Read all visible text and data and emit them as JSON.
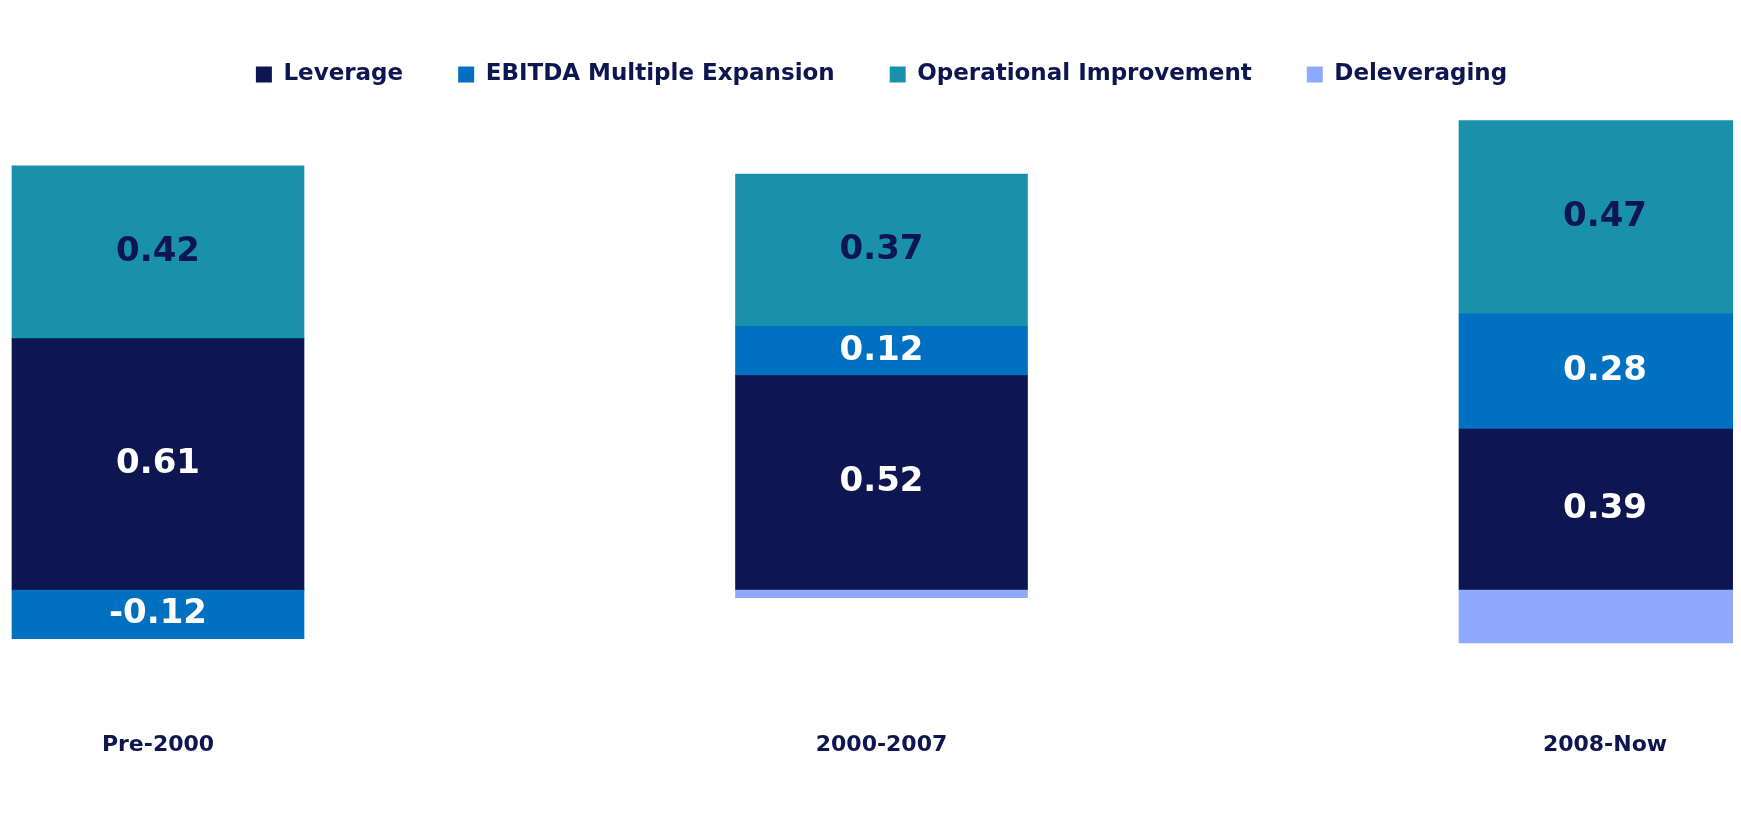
{
  "chart_data": {
    "type": "bar",
    "stacked": true,
    "categories": [
      "Pre-2000",
      "2000-2007",
      "2008-Now"
    ],
    "series": [
      {
        "name": "Leverage",
        "color": "#0d1650",
        "values": [
          0.61,
          0.52,
          0.39
        ],
        "value_labels": [
          "0.61",
          "0.52",
          "0.39"
        ]
      },
      {
        "name": "EBITDA Multiple Expansion",
        "color": "#0070c0",
        "values": [
          -0.12,
          0.12,
          0.28
        ],
        "value_labels": [
          "-0.12",
          "0.12",
          "0.28"
        ]
      },
      {
        "name": "Operational Improvement",
        "color": "#1a91ac",
        "values": [
          0.42,
          0.37,
          0.47
        ],
        "value_labels": [
          "0.42",
          "0.37",
          "0.47"
        ]
      },
      {
        "name": "Deleveraging",
        "color": "#8fa9ff",
        "values": [
          null,
          -0.02,
          -0.13
        ],
        "value_labels": [
          null,
          null,
          null
        ]
      }
    ],
    "legend": "top",
    "grid": false,
    "tick_labels": "x"
  }
}
